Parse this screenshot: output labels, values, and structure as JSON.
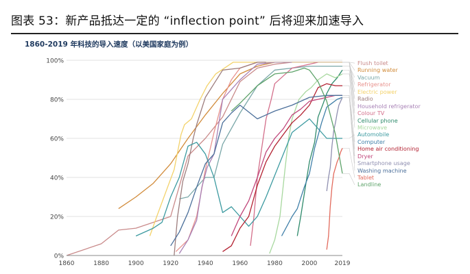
{
  "figure_title": "图表 53：新产品抵达一定的 “inflection point” 后将迎来加速导入",
  "chart_data": {
    "type": "line",
    "title": "1860-2019 年科技的导入速度（以美国家庭为例）",
    "xlabel": "",
    "ylabel": "",
    "xlim": [
      1860,
      2019
    ],
    "ylim": [
      0,
      100
    ],
    "x_ticks": [
      "1860",
      "1880",
      "1900",
      "1920",
      "1940",
      "1960",
      "1980",
      "2000",
      "2019"
    ],
    "y_ticks": [
      "0%",
      "20%",
      "40%",
      "60%",
      "80%",
      "100%"
    ],
    "grid": "horizontal",
    "legend_position": "right",
    "series": [
      {
        "name": "Flush toilet",
        "color": "#c98a8a",
        "points": [
          [
            1860,
            0
          ],
          [
            1880,
            6
          ],
          [
            1890,
            13
          ],
          [
            1900,
            14
          ],
          [
            1910,
            17
          ],
          [
            1920,
            20
          ],
          [
            1930,
            51
          ],
          [
            1940,
            60
          ],
          [
            1950,
            71
          ],
          [
            1960,
            89
          ],
          [
            1970,
            96
          ],
          [
            1980,
            98
          ],
          [
            1990,
            99
          ],
          [
            2000,
            99
          ],
          [
            2019,
            99
          ]
        ]
      },
      {
        "name": "Running water",
        "color": "#d18b3a",
        "points": [
          [
            1890,
            24
          ],
          [
            1900,
            30
          ],
          [
            1910,
            37
          ],
          [
            1920,
            47
          ],
          [
            1930,
            60
          ],
          [
            1940,
            72
          ],
          [
            1950,
            83
          ],
          [
            1960,
            93
          ],
          [
            1970,
            97
          ],
          [
            1980,
            99
          ],
          [
            2019,
            99
          ]
        ]
      },
      {
        "name": "Vacuum",
        "color": "#7aa7a8",
        "points": [
          [
            1925,
            29
          ],
          [
            1930,
            30
          ],
          [
            1940,
            40
          ],
          [
            1945,
            40
          ],
          [
            1950,
            57
          ],
          [
            1960,
            73
          ],
          [
            1970,
            87
          ],
          [
            1980,
            95
          ],
          [
            1990,
            96
          ],
          [
            2000,
            97
          ],
          [
            2019,
            97
          ]
        ]
      },
      {
        "name": "Refrigerator",
        "color": "#e8928d",
        "points": [
          [
            1923,
            2
          ],
          [
            1930,
            8
          ],
          [
            1935,
            20
          ],
          [
            1940,
            44
          ],
          [
            1945,
            63
          ],
          [
            1950,
            80
          ],
          [
            1955,
            90
          ],
          [
            1960,
            96
          ],
          [
            1970,
            99
          ],
          [
            1980,
            99
          ],
          [
            2019,
            99
          ]
        ]
      },
      {
        "name": "Electric power",
        "color": "#f3d26a",
        "points": [
          [
            1908,
            10
          ],
          [
            1912,
            20
          ],
          [
            1917,
            32
          ],
          [
            1922,
            44
          ],
          [
            1926,
            62
          ],
          [
            1928,
            67
          ],
          [
            1932,
            70
          ],
          [
            1937,
            80
          ],
          [
            1941,
            87
          ],
          [
            1946,
            93
          ],
          [
            1951,
            96
          ],
          [
            1956,
            99
          ],
          [
            1970,
            99
          ],
          [
            2019,
            99
          ]
        ]
      },
      {
        "name": "Radio",
        "color": "#9c7c7c",
        "points": [
          [
            1922,
            0
          ],
          [
            1924,
            20
          ],
          [
            1927,
            38
          ],
          [
            1930,
            47
          ],
          [
            1933,
            60
          ],
          [
            1935,
            67
          ],
          [
            1940,
            81
          ],
          [
            1945,
            88
          ],
          [
            1950,
            95
          ],
          [
            1960,
            96
          ],
          [
            1970,
            99
          ],
          [
            1975,
            99
          ]
        ]
      },
      {
        "name": "Household refrigerator",
        "color": "#a780b5",
        "points": [
          [
            1925,
            1
          ],
          [
            1930,
            8
          ],
          [
            1935,
            18
          ],
          [
            1938,
            35
          ],
          [
            1941,
            45
          ],
          [
            1945,
            52
          ],
          [
            1950,
            80
          ],
          [
            1960,
            90
          ],
          [
            1970,
            98
          ],
          [
            1980,
            99
          ],
          [
            1990,
            99
          ]
        ]
      },
      {
        "name": "Colour TV",
        "color": "#d36e8a",
        "points": [
          [
            1966,
            5
          ],
          [
            1968,
            20
          ],
          [
            1970,
            40
          ],
          [
            1973,
            58
          ],
          [
            1975,
            70
          ],
          [
            1978,
            80
          ],
          [
            1980,
            88
          ],
          [
            1985,
            92
          ],
          [
            1990,
            96
          ],
          [
            2000,
            98
          ],
          [
            2005,
            99
          ]
        ]
      },
      {
        "name": "Cellular phone",
        "color": "#2e8a6b",
        "points": [
          [
            1993,
            10
          ],
          [
            1995,
            20
          ],
          [
            1998,
            37
          ],
          [
            2000,
            48
          ],
          [
            2003,
            58
          ],
          [
            2005,
            71
          ],
          [
            2008,
            78
          ],
          [
            2010,
            83
          ],
          [
            2013,
            88
          ],
          [
            2016,
            91
          ],
          [
            2019,
            95
          ]
        ]
      },
      {
        "name": "Microwave",
        "color": "#a7d89e",
        "points": [
          [
            1977,
            1
          ],
          [
            1980,
            8
          ],
          [
            1983,
            20
          ],
          [
            1986,
            45
          ],
          [
            1988,
            60
          ],
          [
            1990,
            70
          ],
          [
            1994,
            80
          ],
          [
            1998,
            84
          ],
          [
            2001,
            86
          ],
          [
            2005,
            90
          ],
          [
            2010,
            93
          ],
          [
            2015,
            91
          ],
          [
            2019,
            93
          ]
        ]
      },
      {
        "name": "Automobile",
        "color": "#3c9aa0",
        "points": [
          [
            1900,
            10
          ],
          [
            1910,
            14
          ],
          [
            1915,
            17
          ],
          [
            1920,
            30
          ],
          [
            1925,
            40
          ],
          [
            1930,
            56
          ],
          [
            1935,
            58
          ],
          [
            1940,
            52
          ],
          [
            1945,
            40
          ],
          [
            1950,
            22
          ],
          [
            1955,
            25
          ],
          [
            1960,
            20
          ],
          [
            1965,
            15
          ],
          [
            1970,
            20
          ],
          [
            1975,
            30
          ],
          [
            1980,
            41
          ],
          [
            1990,
            63
          ],
          [
            2000,
            70
          ],
          [
            2010,
            60
          ],
          [
            2019,
            60
          ]
        ]
      },
      {
        "name": "Computer",
        "color": "#3f7fa8",
        "points": [
          [
            1984,
            10
          ],
          [
            1987,
            15
          ],
          [
            1990,
            20
          ],
          [
            1993,
            24
          ],
          [
            1997,
            35
          ],
          [
            2000,
            42
          ],
          [
            2003,
            55
          ],
          [
            2007,
            68
          ],
          [
            2010,
            76
          ],
          [
            2013,
            78
          ],
          [
            2016,
            80
          ],
          [
            2019,
            81
          ]
        ]
      },
      {
        "name": "Home air conditioning",
        "color": "#b21f2f",
        "points": [
          [
            1950,
            2
          ],
          [
            1955,
            5
          ],
          [
            1960,
            14
          ],
          [
            1965,
            20
          ],
          [
            1970,
            36
          ],
          [
            1975,
            48
          ],
          [
            1980,
            56
          ],
          [
            1985,
            62
          ],
          [
            1990,
            68
          ],
          [
            1995,
            72
          ],
          [
            2000,
            77
          ],
          [
            2005,
            86
          ],
          [
            2010,
            88
          ],
          [
            2015,
            87
          ],
          [
            2019,
            87
          ]
        ]
      },
      {
        "name": "Dryer",
        "color": "#c0457a",
        "points": [
          [
            1955,
            10
          ],
          [
            1960,
            20
          ],
          [
            1965,
            28
          ],
          [
            1970,
            40
          ],
          [
            1975,
            53
          ],
          [
            1980,
            60
          ],
          [
            1985,
            65
          ],
          [
            1990,
            72
          ],
          [
            1995,
            75
          ],
          [
            2000,
            79
          ],
          [
            2005,
            80
          ],
          [
            2010,
            81
          ],
          [
            2015,
            82
          ],
          [
            2019,
            82
          ]
        ]
      },
      {
        "name": "Smartphone usage",
        "color": "#8f8fb0",
        "points": [
          [
            2010,
            33
          ],
          [
            2011,
            40
          ],
          [
            2012,
            45
          ],
          [
            2013,
            56
          ],
          [
            2014,
            64
          ],
          [
            2015,
            68
          ],
          [
            2016,
            73
          ],
          [
            2017,
            77
          ],
          [
            2018,
            79
          ],
          [
            2019,
            81
          ]
        ]
      },
      {
        "name": "Washing machine",
        "color": "#4b6f9a",
        "points": [
          [
            1920,
            5
          ],
          [
            1925,
            12
          ],
          [
            1930,
            22
          ],
          [
            1935,
            35
          ],
          [
            1940,
            47
          ],
          [
            1945,
            52
          ],
          [
            1950,
            68
          ],
          [
            1955,
            73
          ],
          [
            1960,
            77
          ],
          [
            1970,
            70
          ],
          [
            1980,
            74
          ],
          [
            1990,
            77
          ],
          [
            2000,
            81
          ],
          [
            2010,
            82
          ],
          [
            2019,
            82
          ]
        ]
      },
      {
        "name": "Tablet",
        "color": "#e26a5c",
        "points": [
          [
            2010,
            3
          ],
          [
            2011,
            10
          ],
          [
            2012,
            25
          ],
          [
            2013,
            35
          ],
          [
            2014,
            42
          ],
          [
            2015,
            45
          ],
          [
            2016,
            48
          ],
          [
            2017,
            50
          ],
          [
            2018,
            53
          ],
          [
            2019,
            55
          ]
        ]
      },
      {
        "name": "Landline",
        "color": "#5ea36a",
        "points": [
          [
            1955,
            74
          ],
          [
            1960,
            78
          ],
          [
            1970,
            87
          ],
          [
            1980,
            93
          ],
          [
            1990,
            94
          ],
          [
            1997,
            96
          ],
          [
            2000,
            95
          ],
          [
            2005,
            89
          ],
          [
            2010,
            79
          ],
          [
            2015,
            62
          ],
          [
            2019,
            42
          ]
        ]
      }
    ]
  }
}
